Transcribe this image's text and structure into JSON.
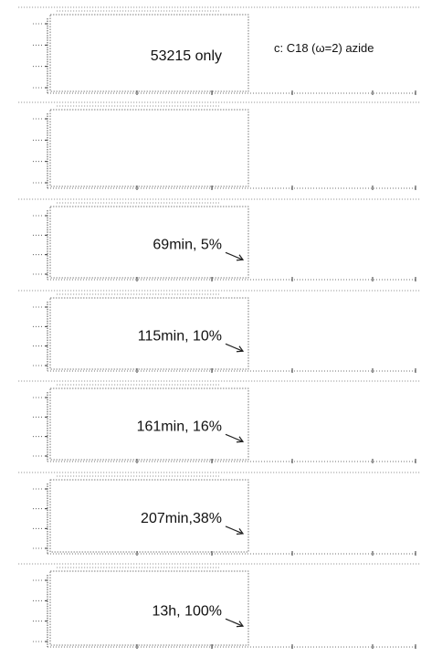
{
  "chart_data": {
    "type": "line",
    "series_label": "c: C18 (ω=2) azide",
    "panels": [
      {
        "annotation": "53215 only",
        "arrow": false
      },
      {
        "annotation": "",
        "arrow": false
      },
      {
        "annotation": "69min, 5%",
        "arrow": true
      },
      {
        "annotation": "115min, 10%",
        "arrow": true
      },
      {
        "annotation": "161min, 16%",
        "arrow": true
      },
      {
        "annotation": "207min,38%",
        "arrow": true
      },
      {
        "annotation": "13h, 100%",
        "arrow": true
      }
    ],
    "grid": false
  }
}
